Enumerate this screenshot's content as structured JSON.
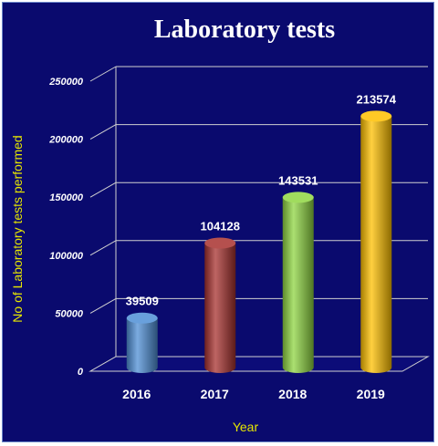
{
  "chart_data": {
    "type": "bar",
    "title": "Laboratory tests",
    "xlabel": "Year",
    "ylabel": "No of Laboratory tests performed",
    "categories": [
      "2016",
      "2017",
      "2018",
      "2019"
    ],
    "values": [
      39509,
      104128,
      143531,
      213574
    ],
    "data_labels": [
      "39509",
      "104128",
      "143531",
      "213574"
    ],
    "y_ticks": [
      0,
      50000,
      100000,
      150000,
      200000,
      250000
    ],
    "y_tick_labels": [
      "0",
      "50000",
      "100000",
      "150000",
      "200000",
      "250000"
    ],
    "ylim": [
      0,
      250000
    ],
    "grid": true,
    "legend": "none",
    "style": "3d-cylinder",
    "colors": [
      "#4f8fd6",
      "#a8312f",
      "#8fd642",
      "#ffc000"
    ],
    "background_color": "#0a0a6e",
    "label_color": "#ffffff",
    "axis_title_color": "#e6e600"
  }
}
